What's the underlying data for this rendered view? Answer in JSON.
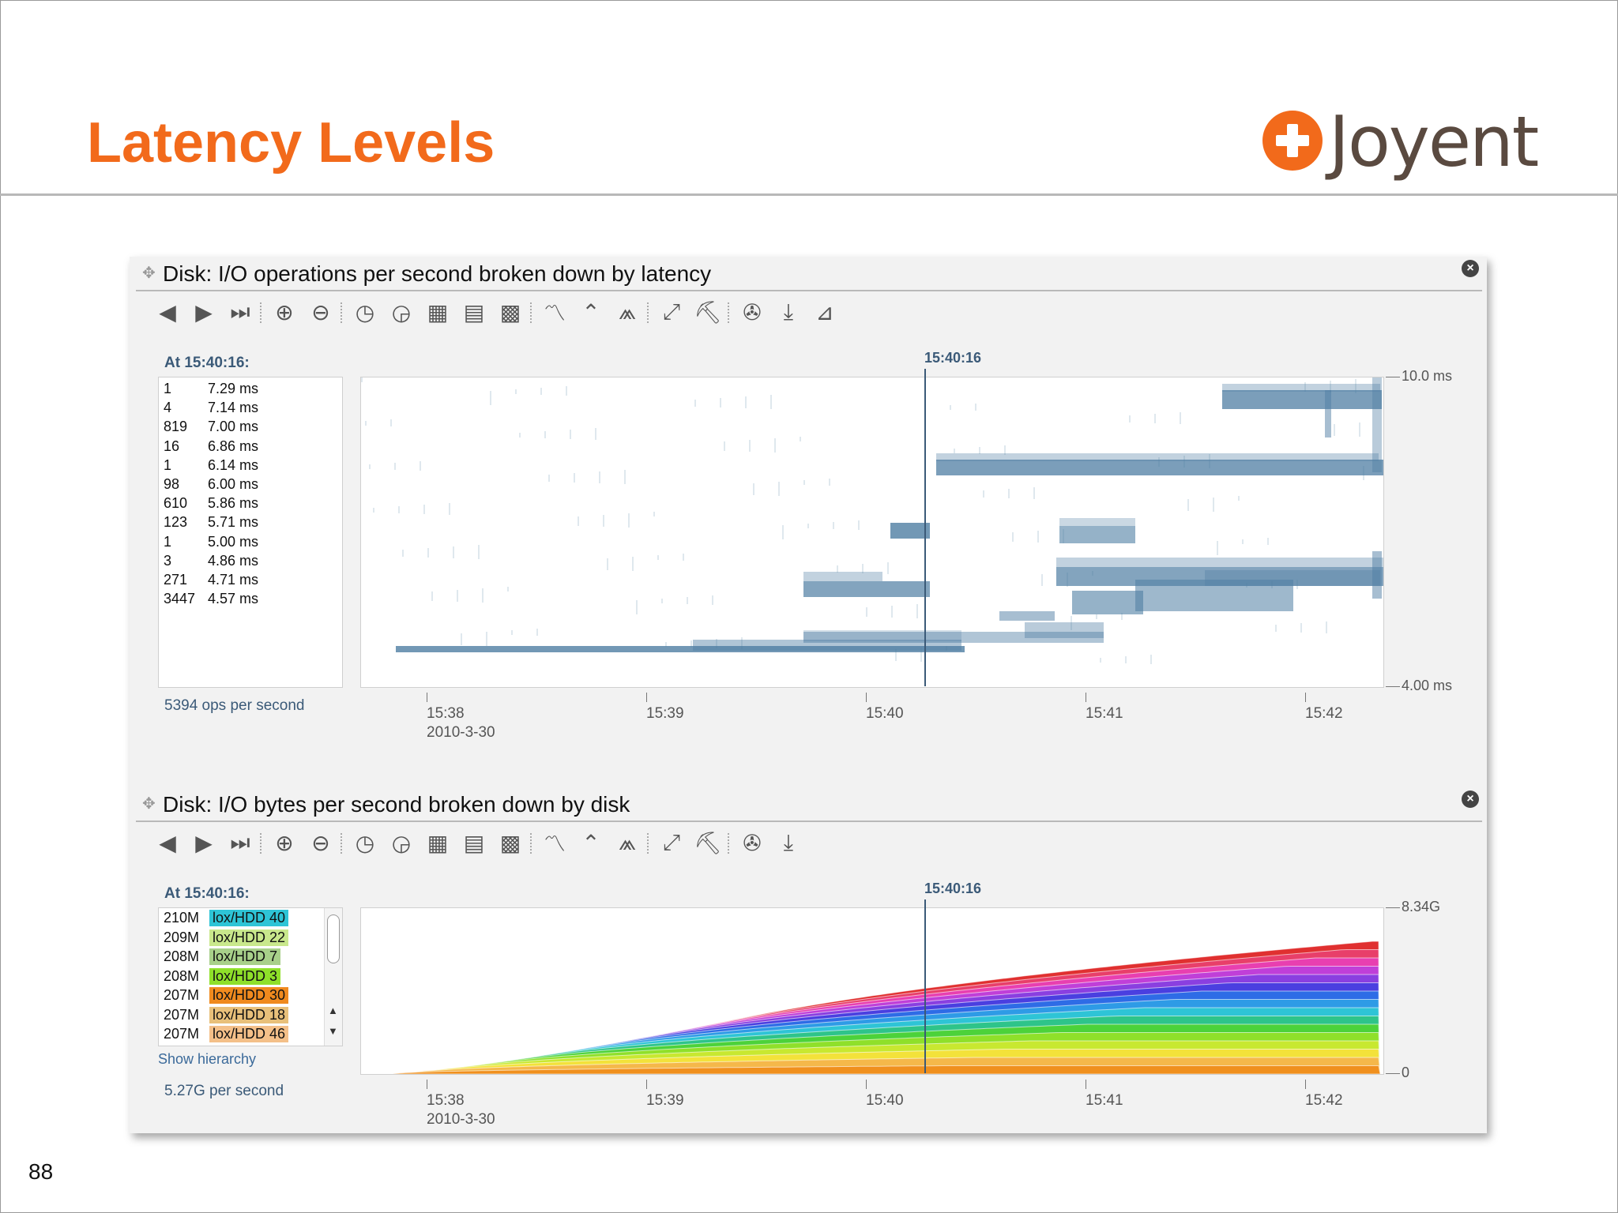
{
  "slide": {
    "title": "Latency Levels",
    "logo_text": "Joyent",
    "page_number": "88"
  },
  "colors": {
    "accent": "#f26a1b",
    "heat": "#4f7ea3",
    "label_blue": "#3b5a78"
  },
  "toolbar_icons": [
    "arrow-left-icon",
    "arrow-right-icon",
    "skip-forward-icon",
    "zoom-in-icon",
    "zoom-out-icon",
    "clock-back-icon",
    "clock-icon",
    "table-icon",
    "table-rows-icon",
    "table-grid-icon",
    "line-chart-icon",
    "line-peak-icon",
    "mountain-icon",
    "expand-icon",
    "drill-down-icon",
    "pie-icon",
    "download-icon",
    "distribution-icon"
  ],
  "panel1": {
    "title": "Disk: I/O operations per second broken down by latency",
    "at_label": "At 15:40:16:",
    "cursor_time": "15:40:16",
    "total": "5394 ops per second",
    "y_max": "10.0 ms",
    "y_min": "4.00 ms",
    "x_ticks": [
      "15:38",
      "15:39",
      "15:40",
      "15:41",
      "15:42"
    ],
    "x_date": "2010-3-30",
    "legend": [
      {
        "count": "1",
        "value": "7.29 ms"
      },
      {
        "count": "4",
        "value": "7.14 ms"
      },
      {
        "count": "819",
        "value": "7.00 ms"
      },
      {
        "count": "16",
        "value": "6.86 ms"
      },
      {
        "count": "1",
        "value": "6.14 ms"
      },
      {
        "count": "98",
        "value": "6.00 ms"
      },
      {
        "count": "610",
        "value": "5.86 ms"
      },
      {
        "count": "123",
        "value": "5.71 ms"
      },
      {
        "count": "1",
        "value": "5.00 ms"
      },
      {
        "count": "3",
        "value": "4.86 ms"
      },
      {
        "count": "271",
        "value": "4.71 ms"
      },
      {
        "count": "3447",
        "value": "4.57 ms"
      }
    ]
  },
  "panel2": {
    "title": "Disk: I/O bytes per second broken down by disk",
    "at_label": "At 15:40:16:",
    "cursor_time": "15:40:16",
    "total": "5.27G per second",
    "show_hierarchy": "Show hierarchy",
    "y_max": "8.34G",
    "y_min": "0",
    "x_ticks": [
      "15:38",
      "15:39",
      "15:40",
      "15:41",
      "15:42"
    ],
    "x_date": "2010-3-30",
    "legend": [
      {
        "value": "210M",
        "name": "lox/HDD 40",
        "color": "#2ec4d6"
      },
      {
        "value": "209M",
        "name": "lox/HDD 22",
        "color": "#c9e88c"
      },
      {
        "value": "208M",
        "name": "lox/HDD 7",
        "color": "#a8d08a"
      },
      {
        "value": "208M",
        "name": "lox/HDD 3",
        "color": "#8fe02a"
      },
      {
        "value": "207M",
        "name": "lox/HDD 30",
        "color": "#f08a1e"
      },
      {
        "value": "207M",
        "name": "lox/HDD 18",
        "color": "#e8c07a"
      },
      {
        "value": "207M",
        "name": "lox/HDD 46",
        "color": "#f4c089"
      }
    ]
  }
}
